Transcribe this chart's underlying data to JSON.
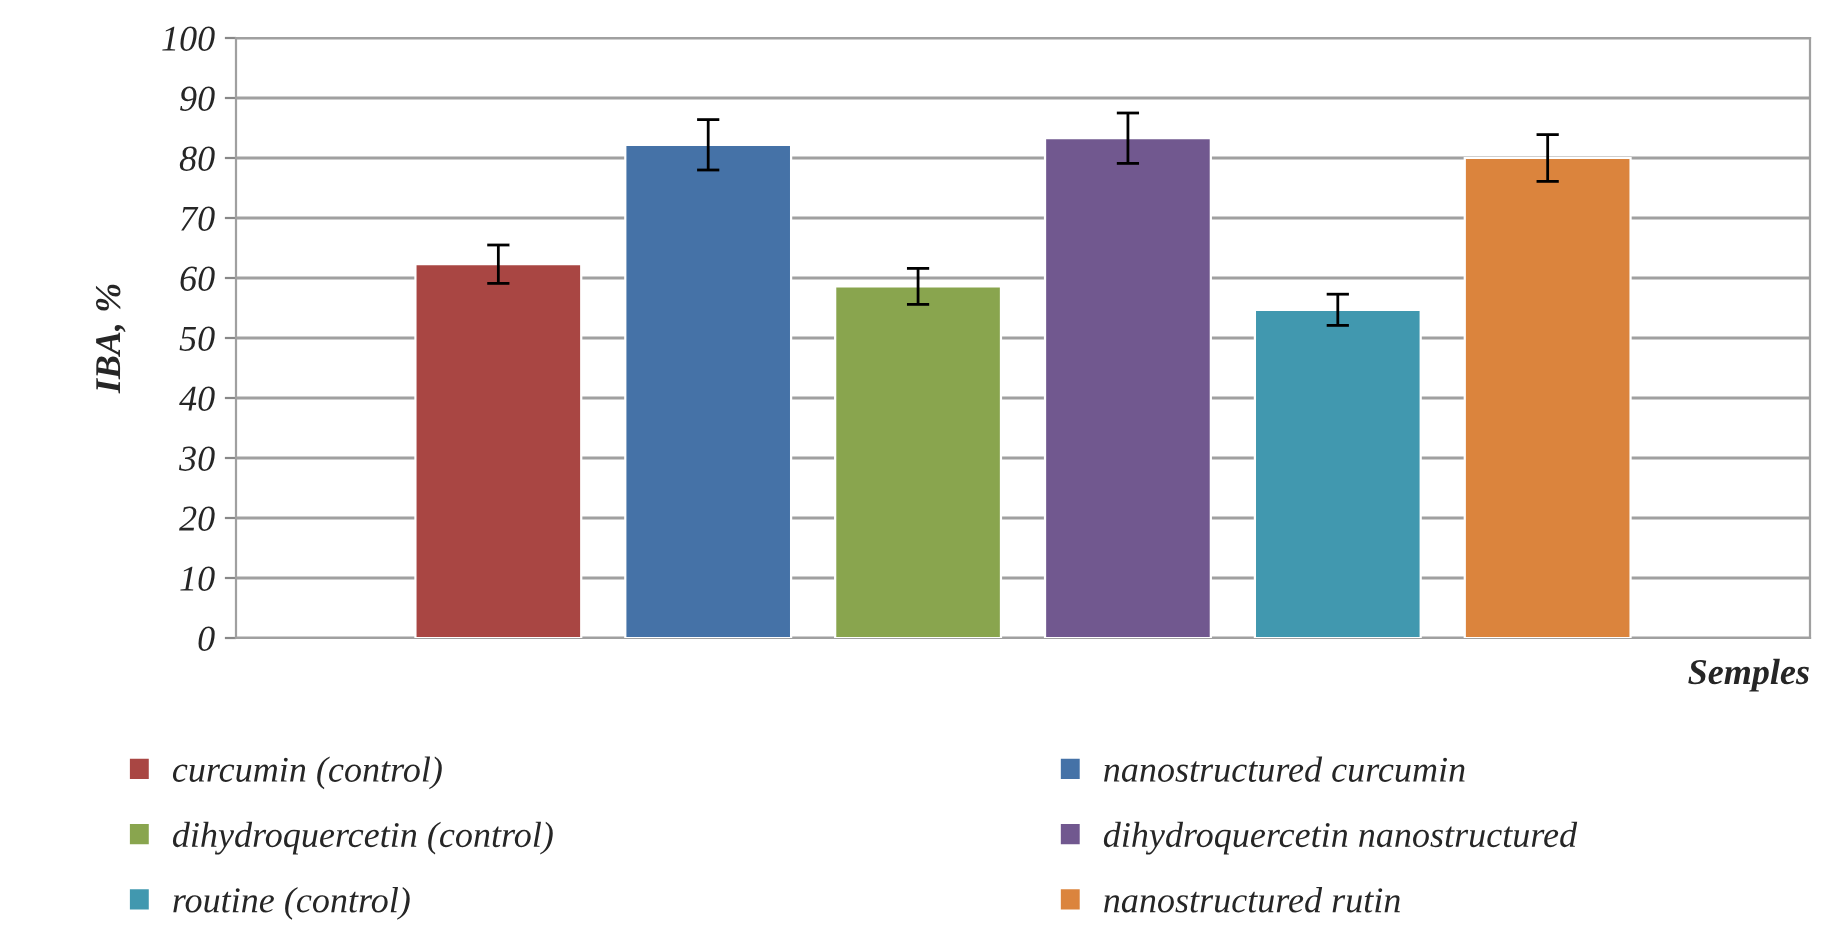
{
  "chart_data": {
    "type": "bar",
    "xlabel": "Semples",
    "ylabel": "IBA, %",
    "categories": [
      null
    ],
    "series": [
      {
        "name": "curcumin (control)",
        "color": "#a94643",
        "values": [
          62.3
        ],
        "errors": [
          3.2
        ]
      },
      {
        "name": "nanostructured curcumin",
        "color": "#4572a7",
        "values": [
          82.2
        ],
        "errors": [
          4.2
        ]
      },
      {
        "name": "dihydroquercetin (control)",
        "color": "#89a54e",
        "values": [
          58.6
        ],
        "errors": [
          3.0
        ]
      },
      {
        "name": "dihydroquercetin nanostructured",
        "color": "#71588f",
        "values": [
          83.3
        ],
        "errors": [
          4.2
        ]
      },
      {
        "name": "routine (control)",
        "color": "#4198af",
        "values": [
          54.7
        ],
        "errors": [
          2.6
        ]
      },
      {
        "name": "nanostructured rutin",
        "color": "#db843d",
        "values": [
          80.0
        ],
        "errors": [
          3.9
        ]
      }
    ],
    "ylim": [
      0,
      100
    ],
    "yticks": [
      0,
      10,
      20,
      30,
      40,
      50,
      60,
      70,
      80,
      90,
      100
    ],
    "grid": "y",
    "legend": "bottom"
  }
}
